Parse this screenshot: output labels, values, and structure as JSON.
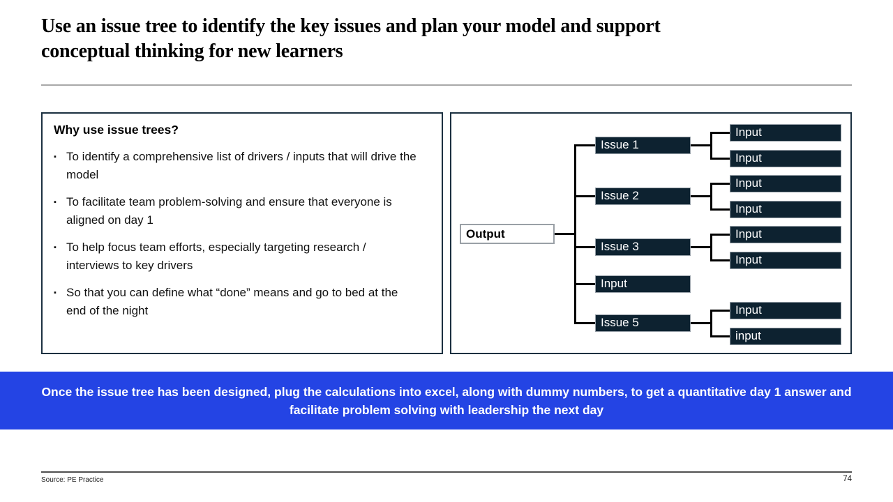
{
  "slide": {
    "title": "Use an issue tree to identify the key issues and plan your model and support conceptual thinking for new learners",
    "source": "Source: PE Practice",
    "page_number": "74"
  },
  "left_panel": {
    "heading": "Why use issue trees?",
    "bullet_marker": "▪",
    "bullets": [
      "To identify a comprehensive list of drivers / inputs that will drive the model",
      "To facilitate team problem-solving and ensure that everyone is aligned on day 1",
      "To help focus team efforts, especially targeting research / interviews to key drivers",
      "So that you can define what “done” means and go to bed at the end of the night"
    ]
  },
  "diagram": {
    "output_label": "Output",
    "branches": [
      {
        "label": "Issue 1",
        "children": [
          "Input",
          "Input"
        ]
      },
      {
        "label": "Issue 2",
        "children": [
          "Input",
          "Input"
        ]
      },
      {
        "label": "Issue 3",
        "children": [
          "Input",
          "Input"
        ]
      },
      {
        "label": "Input",
        "children": []
      },
      {
        "label": "Issue 5",
        "children": [
          "Input",
          "input"
        ]
      }
    ]
  },
  "banner": {
    "text": "Once the issue tree has been designed, plug the calculations into excel, along with dummy numbers, to get a quantitative day 1 answer and facilitate problem solving with leadership the next day"
  },
  "colors": {
    "navy_box": "#0d2230",
    "banner_blue": "#2444e4",
    "panel_border": "#1b3040",
    "connector": "#000000"
  }
}
